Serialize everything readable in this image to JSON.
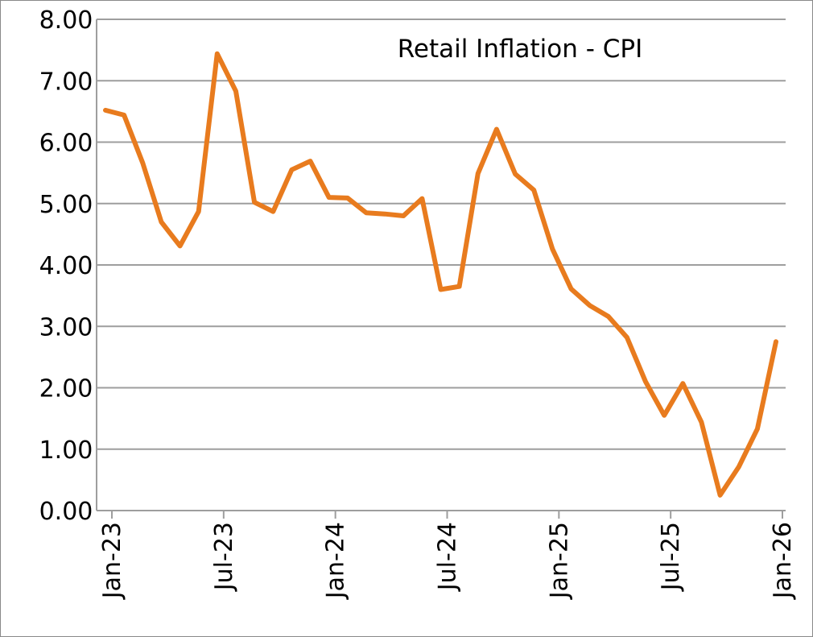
{
  "chart_data": {
    "type": "line",
    "title": "Retail Inflation - CPI",
    "xlabel": "",
    "ylabel": "",
    "ylim": [
      0,
      8
    ],
    "yticks": [
      "0.00",
      "1.00",
      "2.00",
      "3.00",
      "4.00",
      "5.00",
      "6.00",
      "7.00",
      "8.00"
    ],
    "xticks": [
      "Jan-23",
      "Jul-23",
      "Jan-24",
      "Jul-24",
      "Jan-25",
      "Jul-25",
      "Jan-26"
    ],
    "grid": true,
    "legend": "none",
    "line_color": "#E87B1E",
    "series": [
      {
        "x": [
          "Jan-23",
          "Feb-23",
          "Mar-23",
          "Apr-23",
          "May-23",
          "Jun-23",
          "Jul-23",
          "Aug-23",
          "Sep-23",
          "Oct-23",
          "Nov-23",
          "Dec-23",
          "Jan-24",
          "Feb-24",
          "Mar-24",
          "Apr-24",
          "May-24",
          "Jun-24",
          "Jul-24",
          "Aug-24",
          "Sep-24",
          "Oct-24",
          "Nov-24",
          "Dec-24",
          "Jan-25",
          "Feb-25",
          "Mar-25",
          "Apr-25",
          "May-25",
          "Jun-25",
          "Jul-25",
          "Aug-25",
          "Sep-25",
          "Oct-25",
          "Nov-25",
          "Dec-25",
          "Jan-26"
        ],
        "values": [
          6.52,
          6.44,
          5.66,
          4.7,
          4.31,
          4.87,
          7.44,
          6.83,
          5.02,
          4.87,
          5.55,
          5.69,
          5.1,
          5.09,
          4.85,
          4.83,
          4.8,
          5.08,
          3.6,
          3.65,
          5.49,
          6.21,
          5.48,
          5.22,
          4.26,
          3.61,
          3.34,
          3.16,
          2.82,
          2.1,
          1.55,
          2.07,
          1.44,
          0.25,
          0.71,
          1.33,
          2.75
        ]
      }
    ]
  }
}
